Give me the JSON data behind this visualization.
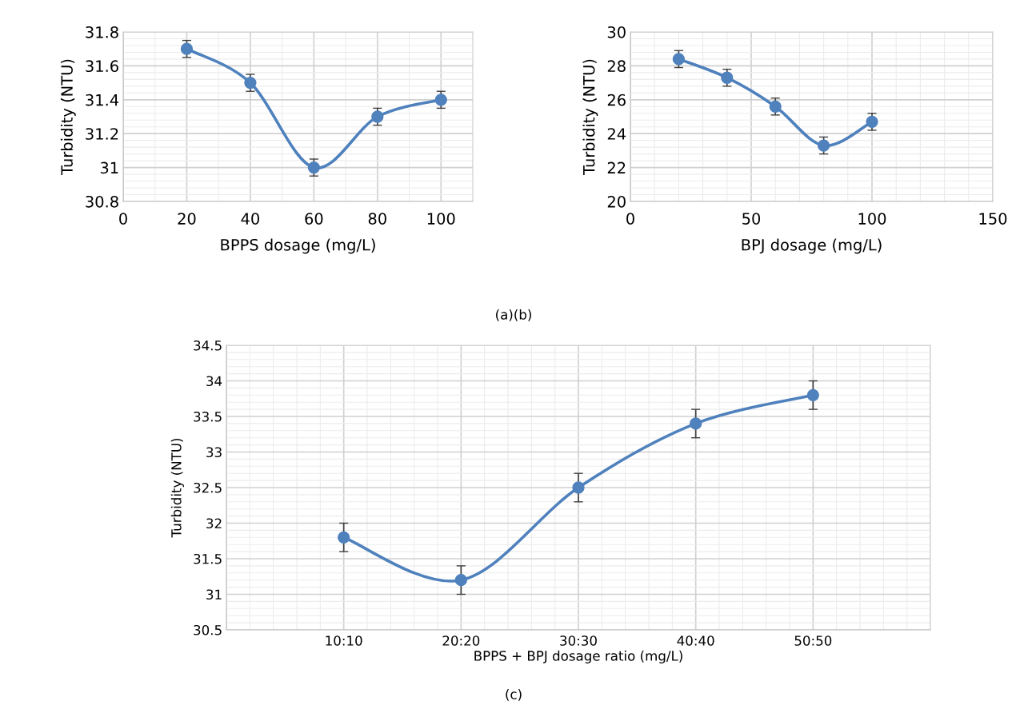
{
  "chart_data": [
    {
      "type": "line",
      "xlabel": "BPPS dosage (mg/L)",
      "ylabel": "Turbidity (NTU)",
      "x": [
        20,
        40,
        60,
        80,
        100
      ],
      "series": [
        {
          "color": "#4f81bd",
          "values": [
            31.7,
            31.5,
            31.0,
            31.3,
            31.4
          ],
          "errors": [
            0.05,
            0.05,
            0.05,
            0.05,
            0.05
          ]
        }
      ],
      "xlim": [
        0,
        110
      ],
      "xticks": [
        0,
        20,
        40,
        60,
        80,
        100
      ],
      "ylim": [
        30.8,
        31.8
      ],
      "yticks": [
        30.8,
        31,
        31.2,
        31.4,
        31.6,
        31.8
      ],
      "grid": true,
      "marker": "circle",
      "line_style": "solid",
      "annotations": [
        "(a)(b)"
      ]
    },
    {
      "type": "line",
      "xlabel": "BPJ dosage (mg/L)",
      "ylabel": "Turbidity (NTU)",
      "x": [
        20,
        40,
        60,
        80,
        100
      ],
      "series": [
        {
          "color": "#4f81bd",
          "values": [
            28.4,
            27.3,
            25.6,
            23.3,
            24.7
          ],
          "errors": [
            0.5,
            0.5,
            0.5,
            0.5,
            0.5
          ]
        }
      ],
      "xlim": [
        0,
        150
      ],
      "xticks": [
        0,
        50,
        100,
        150
      ],
      "ylim": [
        20,
        30
      ],
      "yticks": [
        20,
        22,
        24,
        26,
        28,
        30
      ],
      "grid": true,
      "marker": "circle",
      "line_style": "solid"
    },
    {
      "type": "line",
      "xlabel": "BPPS + BPJ dosage ratio (mg/L)",
      "ylabel": "Turbidity (NTU)",
      "categories": [
        null,
        "10:10",
        "20:20",
        "30:30",
        "40:40",
        "50:50",
        null
      ],
      "series": [
        {
          "color": "#4f81bd",
          "values": [
            null,
            31.8,
            31.2,
            32.5,
            33.4,
            33.8,
            null
          ],
          "errors": [
            null,
            0.2,
            0.2,
            0.2,
            0.2,
            0.2,
            null
          ]
        }
      ],
      "ylim": [
        30.5,
        34.5
      ],
      "yticks": [
        30.5,
        31,
        31.5,
        32,
        32.5,
        33,
        33.5,
        34,
        34.5
      ],
      "grid": true,
      "marker": "circle",
      "line_style": "solid",
      "annotations": [
        "(c)"
      ]
    }
  ]
}
